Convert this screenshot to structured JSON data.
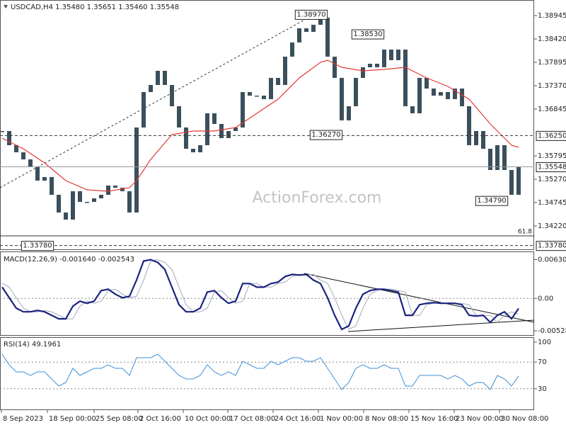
{
  "header": "USDCAD,H4 1.35480 1.35651 1.35460 1.35548",
  "watermark": "ActionForex.com",
  "chart_data": [
    {
      "type": "candlestick",
      "color": "#3b4f5c",
      "values": [
        1.36352,
        1.36034,
        1.35874,
        1.35715,
        1.35556,
        1.35238,
        1.35318,
        1.3492,
        1.34522,
        1.34363,
        1.35,
        1.34761,
        1.34761,
        1.3484,
        1.3492,
        1.35127,
        1.35079,
        1.35,
        1.34522,
        1.36431,
        1.37227,
        1.37386,
        1.37704,
        1.37386,
        1.36909,
        1.36431,
        1.35954,
        1.35874,
        1.36034,
        1.3675,
        1.36511,
        1.36193,
        1.36352,
        1.36431,
        1.37227,
        1.37147,
        1.37147,
        1.37068,
        1.37545,
        1.37386,
        1.38022,
        1.38341,
        1.38659,
        1.38579,
        1.38738,
        1.38897,
        1.38022,
        1.37545,
        1.36591,
        1.36909,
        1.37545,
        1.37784,
        1.37863,
        1.37784,
        1.38181,
        1.37943,
        1.38181,
        1.36909,
        1.3675,
        1.37545,
        1.37306,
        1.37147,
        1.37227,
        1.37068,
        1.37306,
        1.36909,
        1.36034,
        1.36352,
        1.35954,
        1.35477,
        1.36034,
        1.35477,
        1.3492,
        1.35548
      ],
      "ma": {
        "color": "#e53935",
        "x": [
          0,
          3,
          6,
          9,
          12,
          15,
          18,
          19,
          21,
          24,
          27,
          30,
          33,
          36,
          39,
          42,
          45,
          46,
          48,
          51,
          54,
          57,
          60,
          63,
          66,
          69,
          72,
          73
        ],
        "values": [
          1.36193,
          1.35954,
          1.35636,
          1.35238,
          1.35031,
          1.35,
          1.35079,
          1.35238,
          1.35715,
          1.36272,
          1.36352,
          1.36352,
          1.36431,
          1.3675,
          1.37068,
          1.37545,
          1.37895,
          1.37943,
          1.37784,
          1.37704,
          1.37736,
          1.37784,
          1.37545,
          1.37354,
          1.37068,
          1.36511,
          1.36034,
          1.35986
        ]
      },
      "ylim": [
        1.33695,
        1.39215
      ],
      "yticks": [
        {
          "value": 1.38945,
          "label": "1.38945"
        },
        {
          "value": 1.3842,
          "label": "1.38420"
        },
        {
          "value": 1.37895,
          "label": "1.37895"
        },
        {
          "value": 1.3737,
          "label": "1.37370"
        },
        {
          "value": 1.36845,
          "label": "1.36845"
        },
        {
          "value": 1.35795,
          "label": "1.35795"
        },
        {
          "value": 1.3527,
          "label": "1.35270"
        },
        {
          "value": 1.34745,
          "label": "1.34745"
        },
        {
          "value": 1.3422,
          "label": "1.34220"
        }
      ],
      "xlim": [
        -0.3,
        75.2
      ],
      "xticks": [
        {
          "value": -0.1,
          "label": "8 Sep 2023"
        },
        {
          "value": 6.4,
          "label": "18 Sep 00:00"
        },
        {
          "value": 13,
          "label": "25 Sep 08:00"
        },
        {
          "value": 19.2,
          "label": "2 Oct 16:00"
        },
        {
          "value": 25.6,
          "label": "10 Oct 00:00"
        },
        {
          "value": 31.9,
          "label": "17 Oct 08:00"
        },
        {
          "value": 38.3,
          "label": "24 Oct 16:00"
        },
        {
          "value": 44.7,
          "label": "1 Nov 00:00"
        },
        {
          "value": 51.1,
          "label": "8 Nov 08:00"
        },
        {
          "value": 57.5,
          "label": "15 Nov 16:00"
        },
        {
          "value": 63.9,
          "label": "23 Nov 00:00"
        },
        {
          "value": 70.3,
          "label": "30 Nov 08:00"
        }
      ],
      "levels": [
        {
          "value": 1.3625,
          "label": "1.36250",
          "style": "dashed"
        },
        {
          "value": 1.35548,
          "label": "1.35548",
          "style": "solid"
        },
        {
          "value": 1.3378,
          "label": "1.33780",
          "style": "dashed"
        },
        {
          "value": 1.33997,
          "label": "61.8",
          "style": "fib"
        }
      ],
      "annotations": [
        {
          "x": 43.7,
          "value": 1.3897,
          "label": "1.38970"
        },
        {
          "x": 51.7,
          "value": 1.3853,
          "label": "1.38530"
        },
        {
          "x": 45.8,
          "value": 1.3627,
          "label": "1.36270"
        },
        {
          "x": 69.2,
          "value": 1.3479,
          "label": "1.34790"
        },
        {
          "x": 5,
          "value": 1.3378,
          "label": "1.33780"
        }
      ]
    },
    {
      "type": "line",
      "title": "MACD(12,26,9) -0.001640 -0.002543",
      "series": [
        {
          "color": "#1a237e",
          "values": [
            0.00183,
            0.00011,
            -0.0016,
            -0.00218,
            -0.00218,
            -0.00195,
            -0.00218,
            -0.00275,
            -0.00332,
            -0.00332,
            -0.00126,
            -0.00046,
            -0.0008,
            -0.00046,
            0.00126,
            0.00149,
            0.00069,
            0.00011,
            0.00034,
            0.00298,
            0.00607,
            0.0063,
            0.00584,
            0.0047,
            0.00183,
            -0.00103,
            -0.00218,
            -0.00218,
            -0.0016,
            0.00103,
            0.00126,
            0.00011,
            -0.0008,
            -0.00046,
            0.00241,
            0.00241,
            0.00183,
            0.00183,
            0.00241,
            0.00264,
            0.00355,
            0.0039,
            0.00378,
            0.0039,
            0.00298,
            0.00241,
            0.00011,
            -0.00275,
            -0.00504,
            -0.00447,
            -0.0016,
            0.00069,
            0.00126,
            0.00149,
            0.00149,
            0.00126,
            0.00103,
            -0.00275,
            -0.00275,
            -0.00103,
            -0.0008,
            -0.00069,
            -0.0008,
            -0.0008,
            -0.0008,
            -0.00103,
            -0.00275,
            -0.00287,
            -0.00275,
            -0.0039,
            -0.00275,
            -0.00218,
            -0.00332,
            -0.00164
          ]
        },
        {
          "color": "#a4a8c0",
          "values": [
            0.0025,
            0.00183,
            0.00011,
            -0.0016,
            -0.00218,
            -0.00218,
            -0.00195,
            -0.00218,
            -0.00275,
            -0.00332,
            -0.00332,
            -0.00126,
            -0.00046,
            -0.0008,
            -0.00046,
            0.00126,
            0.00149,
            0.00069,
            0.00011,
            0.00034,
            0.00298,
            0.00607,
            0.0063,
            0.00584,
            0.0047,
            0.00183,
            -0.00103,
            -0.00218,
            -0.00218,
            -0.0016,
            0.00103,
            0.00126,
            0.00011,
            -0.0008,
            -0.00046,
            0.00241,
            0.00241,
            0.00183,
            0.00183,
            0.00241,
            0.00264,
            0.00355,
            0.0039,
            0.00378,
            0.0039,
            0.00298,
            0.00241,
            0.00011,
            -0.00275,
            -0.00504,
            -0.00447,
            -0.0016,
            0.00069,
            0.00126,
            0.00149,
            0.00149,
            0.00126,
            0.00103,
            -0.00275,
            -0.00275,
            -0.00103,
            -0.0008,
            -0.00069,
            -0.0008,
            -0.0008,
            -0.0008,
            -0.00103,
            -0.00275,
            -0.00287,
            -0.00275,
            -0.0039,
            -0.00275,
            -0.00218,
            -0.00254
          ]
        }
      ],
      "ylim": [
        -0.00596,
        0.0074
      ],
      "yticks": [
        0.006305,
        {
          "value": 0,
          "label": "0.00"
        },
        -0.005283
      ]
    },
    {
      "type": "line",
      "title": "RSI(14) 49.1961",
      "series": [
        {
          "color": "#3d8fd6",
          "values": [
            81.9,
            66,
            55.3,
            55.3,
            50,
            55.3,
            55.3,
            44.7,
            34,
            39.4,
            60.6,
            50,
            55.3,
            60.6,
            60.6,
            66,
            60.6,
            60.6,
            50,
            76.6,
            76.6,
            76.6,
            81.9,
            71.3,
            60.6,
            50,
            44.7,
            44.7,
            50,
            66,
            55.3,
            50,
            55.3,
            50,
            71.3,
            66,
            60.6,
            60.6,
            71.3,
            66,
            71.3,
            76.6,
            76.6,
            71.3,
            71.3,
            76.6,
            60.6,
            44.7,
            28.7,
            39.4,
            60.6,
            66,
            60.6,
            60.6,
            66,
            60.6,
            60.6,
            34,
            34,
            50,
            50,
            50,
            50,
            44.7,
            50,
            44.7,
            34,
            39.4,
            39.4,
            28.7,
            50,
            44.7,
            34,
            49.1961
          ]
        }
      ],
      "ylim": [
        0,
        100
      ],
      "yticks": [
        100,
        70,
        30
      ],
      "levels": [
        70,
        30
      ]
    }
  ]
}
